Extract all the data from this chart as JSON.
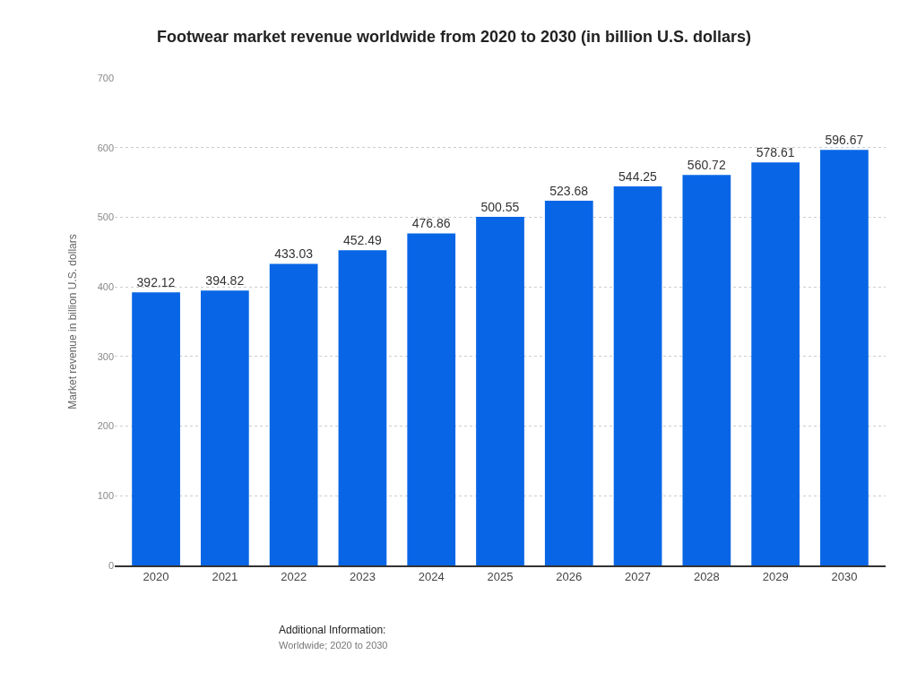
{
  "chart_data": {
    "type": "bar",
    "title": "Footwear market revenue worldwide from 2020 to 2030 (in billion U.S. dollars)",
    "ylabel": "Market revenue in billion U.S. dollars",
    "categories": [
      "2020",
      "2021",
      "2022",
      "2023",
      "2024",
      "2025",
      "2026",
      "2027",
      "2028",
      "2029",
      "2030"
    ],
    "values": [
      392.12,
      394.82,
      433.03,
      452.49,
      476.86,
      500.55,
      523.68,
      544.25,
      560.72,
      578.61,
      596.67
    ],
    "color": "#0866e6",
    "ylim": [
      0,
      700
    ],
    "yticks": [
      0,
      100,
      200,
      300,
      400,
      500,
      600,
      700
    ],
    "grid": "y",
    "data_labels": true,
    "annotations": [
      "Additional Information:",
      "Worldwide; 2020 to 2030"
    ]
  }
}
